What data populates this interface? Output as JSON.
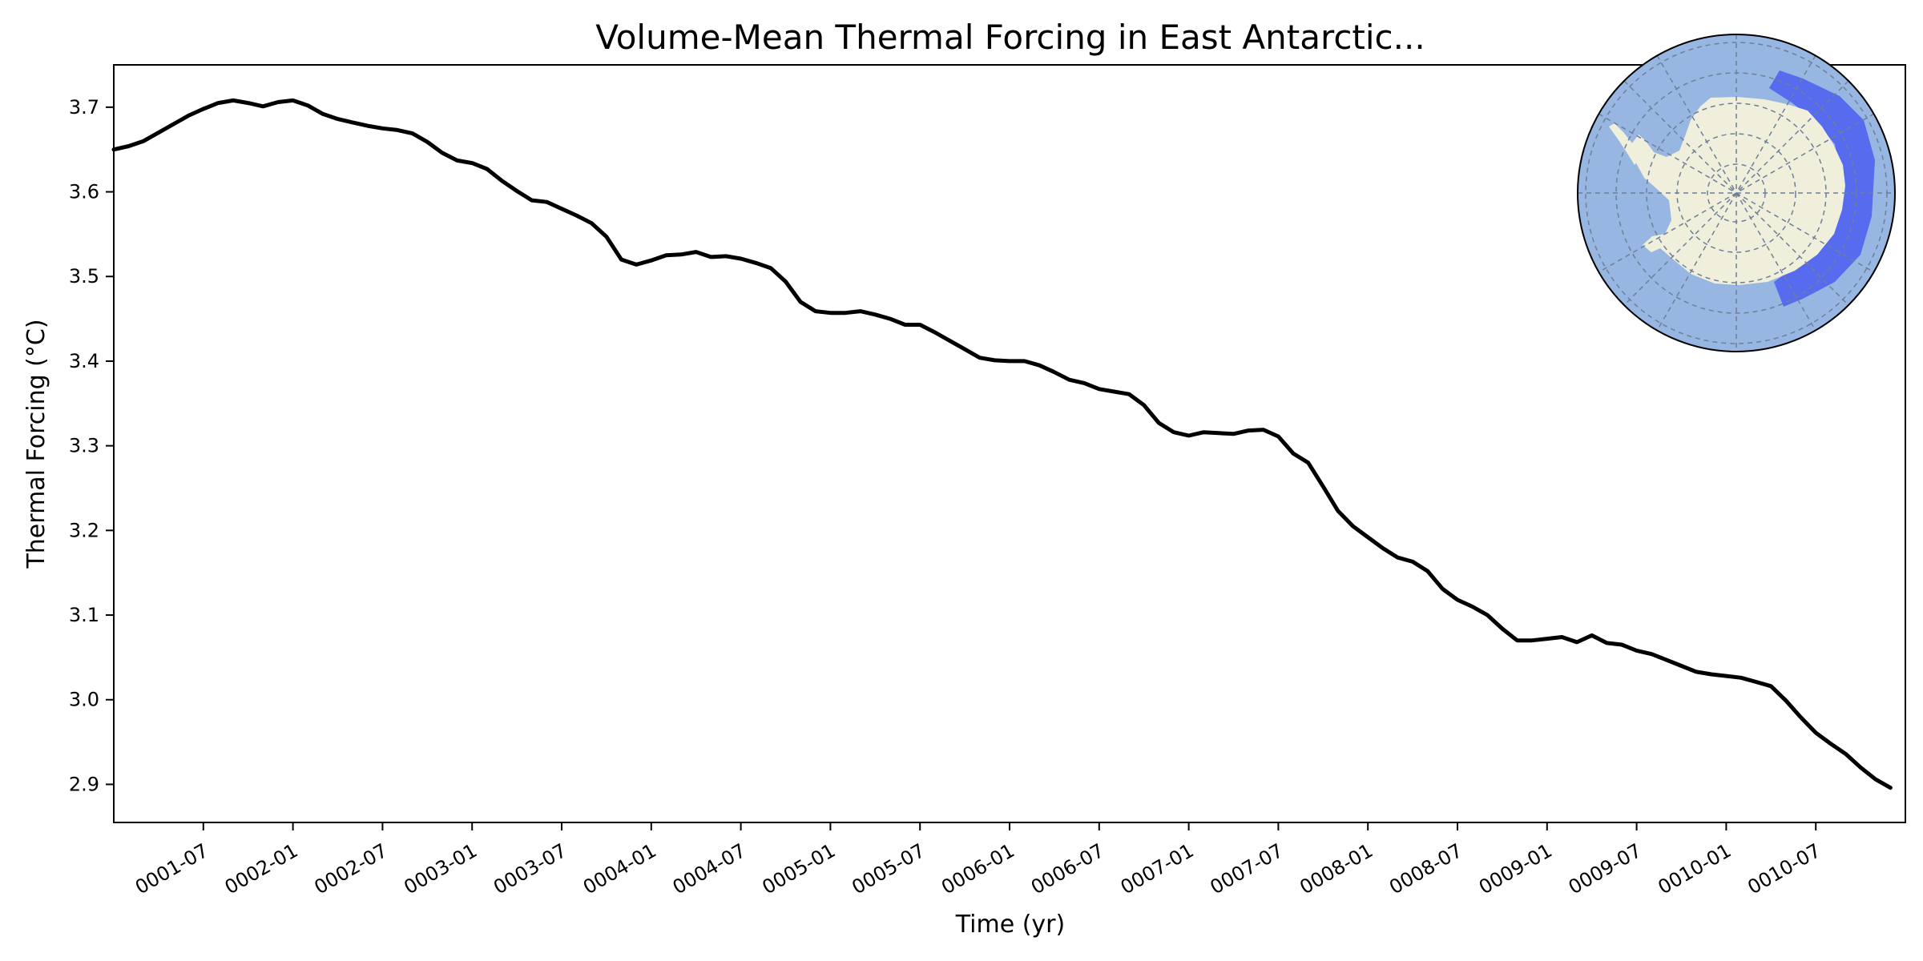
{
  "chart_data": {
    "type": "line",
    "title": "Volume-Mean Thermal Forcing in East Antarctic...",
    "xlabel": "Time (yr)",
    "ylabel": "Thermal Forcing (°C)",
    "xlim": [
      0,
      120
    ],
    "ylim": [
      2.855,
      3.75
    ],
    "x_ticks": [
      {
        "x": 6,
        "label": "0001-07"
      },
      {
        "x": 12,
        "label": "0002-01"
      },
      {
        "x": 18,
        "label": "0002-07"
      },
      {
        "x": 24,
        "label": "0003-01"
      },
      {
        "x": 30,
        "label": "0003-07"
      },
      {
        "x": 36,
        "label": "0004-01"
      },
      {
        "x": 42,
        "label": "0004-07"
      },
      {
        "x": 48,
        "label": "0005-01"
      },
      {
        "x": 54,
        "label": "0005-07"
      },
      {
        "x": 60,
        "label": "0006-01"
      },
      {
        "x": 66,
        "label": "0006-07"
      },
      {
        "x": 72,
        "label": "0007-01"
      },
      {
        "x": 78,
        "label": "0007-07"
      },
      {
        "x": 84,
        "label": "0008-01"
      },
      {
        "x": 90,
        "label": "0008-07"
      },
      {
        "x": 96,
        "label": "0009-01"
      },
      {
        "x": 102,
        "label": "0009-07"
      },
      {
        "x": 108,
        "label": "0010-01"
      },
      {
        "x": 114,
        "label": "0010-07"
      }
    ],
    "y_ticks": [
      {
        "y": 2.9,
        "label": "2.9"
      },
      {
        "y": 3.0,
        "label": "3.0"
      },
      {
        "y": 3.1,
        "label": "3.1"
      },
      {
        "y": 3.2,
        "label": "3.2"
      },
      {
        "y": 3.3,
        "label": "3.3"
      },
      {
        "y": 3.4,
        "label": "3.4"
      },
      {
        "y": 3.5,
        "label": "3.5"
      },
      {
        "y": 3.6,
        "label": "3.6"
      },
      {
        "y": 3.7,
        "label": "3.7"
      }
    ],
    "series": [
      {
        "name": "thermal_forcing",
        "color": "#000000",
        "points": [
          [
            0,
            3.65
          ],
          [
            1,
            3.654
          ],
          [
            2,
            3.66
          ],
          [
            3,
            3.67
          ],
          [
            4,
            3.68
          ],
          [
            5,
            3.69
          ],
          [
            6,
            3.698
          ],
          [
            7,
            3.705
          ],
          [
            8,
            3.708
          ],
          [
            9,
            3.705
          ],
          [
            10,
            3.701
          ],
          [
            11,
            3.706
          ],
          [
            12,
            3.708
          ],
          [
            13,
            3.702
          ],
          [
            14,
            3.692
          ],
          [
            15,
            3.686
          ],
          [
            16,
            3.682
          ],
          [
            17,
            3.678
          ],
          [
            18,
            3.675
          ],
          [
            19,
            3.673
          ],
          [
            20,
            3.669
          ],
          [
            21,
            3.659
          ],
          [
            22,
            3.646
          ],
          [
            23,
            3.637
          ],
          [
            24,
            3.634
          ],
          [
            25,
            3.627
          ],
          [
            26,
            3.613
          ],
          [
            27,
            3.601
          ],
          [
            28,
            3.59
          ],
          [
            29,
            3.588
          ],
          [
            30,
            3.58
          ],
          [
            31,
            3.572
          ],
          [
            32,
            3.563
          ],
          [
            33,
            3.547
          ],
          [
            34,
            3.52
          ],
          [
            35,
            3.514
          ],
          [
            36,
            3.519
          ],
          [
            37,
            3.525
          ],
          [
            38,
            3.526
          ],
          [
            39,
            3.529
          ],
          [
            40,
            3.523
          ],
          [
            41,
            3.524
          ],
          [
            42,
            3.521
          ],
          [
            43,
            3.516
          ],
          [
            44,
            3.51
          ],
          [
            45,
            3.494
          ],
          [
            46,
            3.47
          ],
          [
            47,
            3.459
          ],
          [
            48,
            3.457
          ],
          [
            49,
            3.457
          ],
          [
            50,
            3.459
          ],
          [
            51,
            3.455
          ],
          [
            52,
            3.45
          ],
          [
            53,
            3.443
          ],
          [
            54,
            3.443
          ],
          [
            55,
            3.434
          ],
          [
            56,
            3.424
          ],
          [
            57,
            3.414
          ],
          [
            58,
            3.404
          ],
          [
            59,
            3.401
          ],
          [
            60,
            3.4
          ],
          [
            61,
            3.4
          ],
          [
            62,
            3.395
          ],
          [
            63,
            3.387
          ],
          [
            64,
            3.378
          ],
          [
            65,
            3.374
          ],
          [
            66,
            3.367
          ],
          [
            67,
            3.364
          ],
          [
            68,
            3.361
          ],
          [
            69,
            3.348
          ],
          [
            70,
            3.327
          ],
          [
            71,
            3.316
          ],
          [
            72,
            3.312
          ],
          [
            73,
            3.316
          ],
          [
            74,
            3.315
          ],
          [
            75,
            3.314
          ],
          [
            76,
            3.318
          ],
          [
            77,
            3.319
          ],
          [
            78,
            3.311
          ],
          [
            79,
            3.291
          ],
          [
            80,
            3.28
          ],
          [
            81,
            3.252
          ],
          [
            82,
            3.223
          ],
          [
            83,
            3.205
          ],
          [
            84,
            3.192
          ],
          [
            85,
            3.179
          ],
          [
            86,
            3.168
          ],
          [
            87,
            3.163
          ],
          [
            88,
            3.152
          ],
          [
            89,
            3.131
          ],
          [
            90,
            3.118
          ],
          [
            91,
            3.11
          ],
          [
            92,
            3.1
          ],
          [
            93,
            3.084
          ],
          [
            94,
            3.07
          ],
          [
            95,
            3.07
          ],
          [
            96,
            3.072
          ],
          [
            97,
            3.074
          ],
          [
            98,
            3.068
          ],
          [
            99,
            3.076
          ],
          [
            100,
            3.067
          ],
          [
            101,
            3.065
          ],
          [
            102,
            3.058
          ],
          [
            103,
            3.054
          ],
          [
            104,
            3.047
          ],
          [
            105,
            3.04
          ],
          [
            106,
            3.033
          ],
          [
            107,
            3.03
          ],
          [
            108,
            3.028
          ],
          [
            109,
            3.026
          ],
          [
            110,
            3.021
          ],
          [
            111,
            3.016
          ],
          [
            112,
            2.999
          ],
          [
            113,
            2.979
          ],
          [
            114,
            2.961
          ],
          [
            115,
            2.948
          ],
          [
            116,
            2.936
          ],
          [
            117,
            2.92
          ],
          [
            118,
            2.906
          ],
          [
            119,
            2.896
          ]
        ]
      }
    ],
    "grid": false,
    "inset": {
      "description_name": "antarctica-region-map",
      "ocean_color": "#97b6e1",
      "land_color": "#efefdb",
      "region_color": "#4a5ef0"
    }
  }
}
